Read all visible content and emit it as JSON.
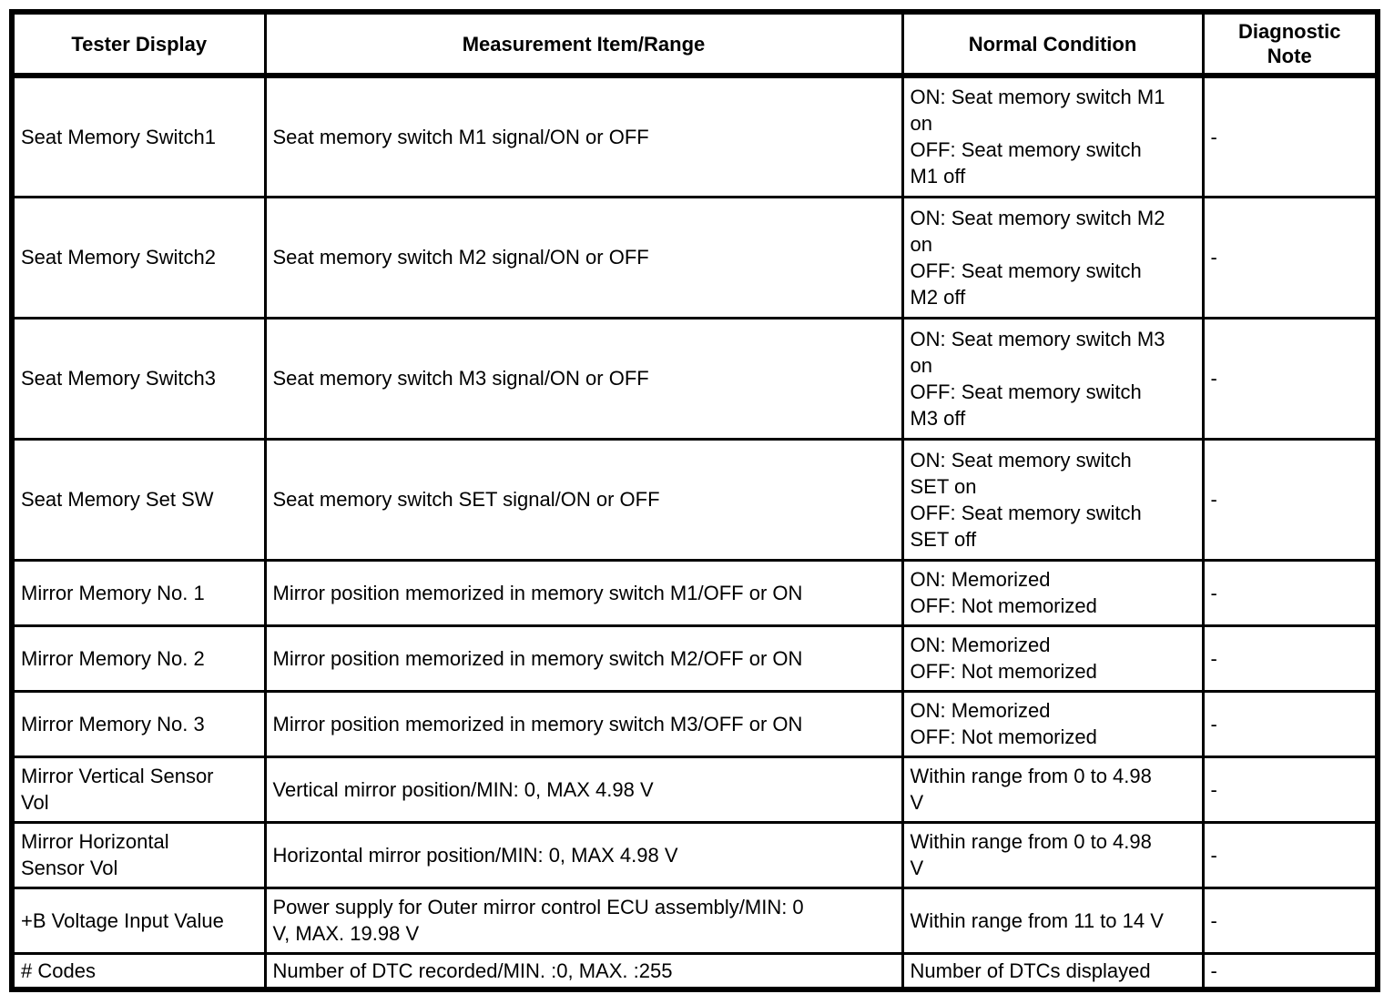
{
  "table": {
    "headers": [
      "Tester Display",
      "Measurement Item/Range",
      "Normal Condition",
      "Diagnostic\nNote"
    ],
    "rows": [
      {
        "tester_display": "Seat Memory Switch1",
        "measurement_item_range": "Seat memory switch M1 signal/ON or OFF",
        "normal_condition": "ON: Seat memory switch M1\non\nOFF: Seat memory switch\nM1 off",
        "diagnostic_note": "-"
      },
      {
        "tester_display": "Seat Memory Switch2",
        "measurement_item_range": "Seat memory switch M2 signal/ON or OFF",
        "normal_condition": "ON: Seat memory switch M2\non\nOFF: Seat memory switch\nM2 off",
        "diagnostic_note": "-"
      },
      {
        "tester_display": "Seat Memory Switch3",
        "measurement_item_range": "Seat memory switch M3 signal/ON or OFF",
        "normal_condition": "ON: Seat memory switch M3\non\nOFF: Seat memory switch\nM3 off",
        "diagnostic_note": "-"
      },
      {
        "tester_display": "Seat Memory Set SW",
        "measurement_item_range": "Seat memory switch SET signal/ON or OFF",
        "normal_condition": "ON: Seat memory switch\nSET on\nOFF: Seat memory switch\nSET off",
        "diagnostic_note": "-"
      },
      {
        "tester_display": "Mirror Memory No. 1",
        "measurement_item_range": "Mirror position memorized in memory switch M1/OFF or ON",
        "normal_condition": "ON: Memorized\nOFF: Not memorized",
        "diagnostic_note": "-"
      },
      {
        "tester_display": "Mirror Memory No. 2",
        "measurement_item_range": "Mirror position memorized in memory switch M2/OFF or ON",
        "normal_condition": "ON: Memorized\nOFF: Not memorized",
        "diagnostic_note": "-"
      },
      {
        "tester_display": "Mirror Memory No. 3",
        "measurement_item_range": "Mirror position memorized in memory switch M3/OFF or ON",
        "normal_condition": "ON: Memorized\nOFF: Not memorized",
        "diagnostic_note": "-"
      },
      {
        "tester_display": "Mirror Vertical Sensor\nVol",
        "measurement_item_range": "Vertical mirror position/MIN: 0, MAX 4.98 V",
        "normal_condition": "Within range from 0 to 4.98\nV",
        "diagnostic_note": "-"
      },
      {
        "tester_display": "Mirror Horizontal\nSensor Vol",
        "measurement_item_range": "Horizontal mirror position/MIN: 0, MAX 4.98 V",
        "normal_condition": "Within range from 0 to 4.98\nV",
        "diagnostic_note": "-"
      },
      {
        "tester_display": "+B Voltage Input Value",
        "measurement_item_range": "Power supply for Outer mirror control ECU assembly/MIN: 0\nV, MAX. 19.98 V",
        "normal_condition": "Within range from 11 to 14 V",
        "diagnostic_note": "-"
      },
      {
        "tester_display": "# Codes",
        "measurement_item_range": "Number of DTC recorded/MIN. :0, MAX. :255",
        "normal_condition": "Number of DTCs displayed",
        "diagnostic_note": "-"
      }
    ]
  }
}
